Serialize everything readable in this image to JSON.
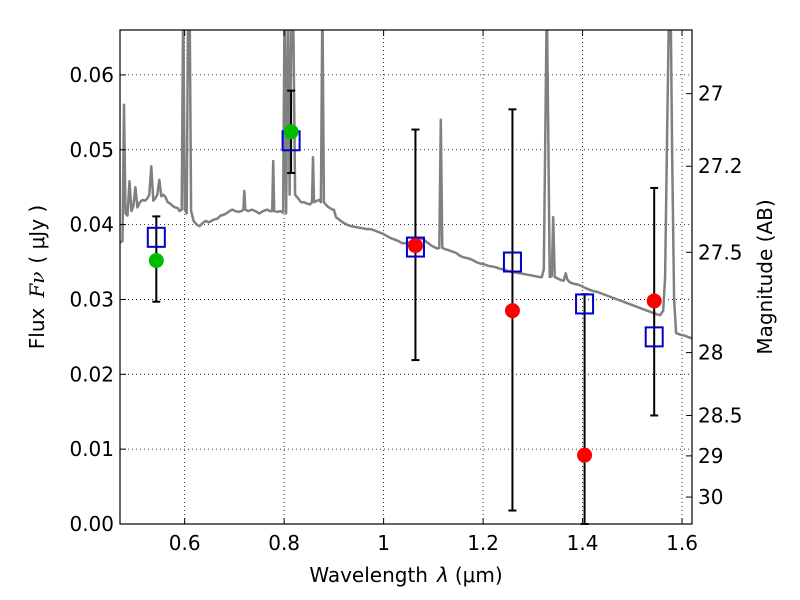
{
  "chart_data": {
    "type": "scatter",
    "xlabel_prefix": "Wavelength",
    "xlabel_symbol": "λ",
    "xlabel_unit": "(μm)",
    "ylabel_prefix": "Flux",
    "ylabel_symbol": "Fν",
    "ylabel_unit": "( μJy )",
    "y2label": "Magnitude (AB)",
    "xlim": [
      0.47,
      1.62
    ],
    "ylim": [
      0.0,
      0.066
    ],
    "xticks": [
      0.6,
      0.8,
      1.0,
      1.2,
      1.4,
      1.6
    ],
    "xtick_labels": [
      "0.6",
      "0.8",
      "1",
      "1.2",
      "1.4",
      "1.6"
    ],
    "yticks": [
      0.0,
      0.01,
      0.02,
      0.03,
      0.04,
      0.05,
      0.06
    ],
    "ytick_labels": [
      "0.00",
      "0.01",
      "0.02",
      "0.03",
      "0.04",
      "0.05",
      "0.06"
    ],
    "y2ticks": [
      {
        "label": "27",
        "flux": 0.0575
      },
      {
        "label": "27.2",
        "flux": 0.0478
      },
      {
        "label": "27.5",
        "flux": 0.0363
      },
      {
        "label": "28",
        "flux": 0.0229
      },
      {
        "label": "28.5",
        "flux": 0.0145
      },
      {
        "label": "29",
        "flux": 0.0091
      },
      {
        "label": "30",
        "flux": 0.0036
      }
    ],
    "grid": true,
    "colors": {
      "model": "#808080",
      "observed_green": "#00bb00",
      "observed_red": "#ff0000",
      "model_square": "#0000cc",
      "errorbar": "#000000"
    },
    "series": [
      {
        "kind": "model_spectrum",
        "points": [
          [
            0.47,
            0.0376
          ],
          [
            0.475,
            0.0378
          ],
          [
            0.478,
            0.056
          ],
          [
            0.481,
            0.0415
          ],
          [
            0.485,
            0.0412
          ],
          [
            0.489,
            0.0458
          ],
          [
            0.493,
            0.0418
          ],
          [
            0.497,
            0.0425
          ],
          [
            0.501,
            0.045
          ],
          [
            0.505,
            0.0423
          ],
          [
            0.51,
            0.043
          ],
          [
            0.515,
            0.0433
          ],
          [
            0.52,
            0.0432
          ],
          [
            0.525,
            0.0435
          ],
          [
            0.529,
            0.044
          ],
          [
            0.533,
            0.0478
          ],
          [
            0.537,
            0.0432
          ],
          [
            0.541,
            0.0435
          ],
          [
            0.545,
            0.044
          ],
          [
            0.549,
            0.046
          ],
          [
            0.553,
            0.0438
          ],
          [
            0.557,
            0.044
          ],
          [
            0.561,
            0.0437
          ],
          [
            0.566,
            0.043
          ],
          [
            0.571,
            0.0428
          ],
          [
            0.576,
            0.0425
          ],
          [
            0.581,
            0.0423
          ],
          [
            0.586,
            0.0422
          ],
          [
            0.59,
            0.0418
          ],
          [
            0.594,
            0.042
          ],
          [
            0.597,
            0.07
          ],
          [
            0.6,
            0.042
          ],
          [
            0.604,
            0.0415
          ],
          [
            0.607,
            0.07
          ],
          [
            0.61,
            0.07
          ],
          [
            0.613,
            0.0418
          ],
          [
            0.618,
            0.0405
          ],
          [
            0.624,
            0.04
          ],
          [
            0.63,
            0.0398
          ],
          [
            0.636,
            0.0402
          ],
          [
            0.642,
            0.0405
          ],
          [
            0.648,
            0.0403
          ],
          [
            0.654,
            0.0405
          ],
          [
            0.66,
            0.0407
          ],
          [
            0.666,
            0.0408
          ],
          [
            0.672,
            0.0412
          ],
          [
            0.678,
            0.0413
          ],
          [
            0.684,
            0.0415
          ],
          [
            0.69,
            0.0418
          ],
          [
            0.696,
            0.042
          ],
          [
            0.702,
            0.0418
          ],
          [
            0.708,
            0.0417
          ],
          [
            0.714,
            0.0418
          ],
          [
            0.718,
            0.042
          ],
          [
            0.72,
            0.0445
          ],
          [
            0.722,
            0.042
          ],
          [
            0.728,
            0.0418
          ],
          [
            0.735,
            0.042
          ],
          [
            0.742,
            0.0418
          ],
          [
            0.75,
            0.0415
          ],
          [
            0.758,
            0.0418
          ],
          [
            0.766,
            0.042
          ],
          [
            0.772,
            0.0418
          ],
          [
            0.776,
            0.0418
          ],
          [
            0.778,
            0.0485
          ],
          [
            0.78,
            0.0418
          ],
          [
            0.786,
            0.0417
          ],
          [
            0.792,
            0.0418
          ],
          [
            0.798,
            0.0416
          ],
          [
            0.801,
            0.07
          ],
          [
            0.804,
            0.0415
          ],
          [
            0.808,
            0.07
          ],
          [
            0.811,
            0.044
          ],
          [
            0.815,
            0.07
          ],
          [
            0.818,
            0.07
          ],
          [
            0.822,
            0.044
          ],
          [
            0.828,
            0.0435
          ],
          [
            0.834,
            0.043
          ],
          [
            0.84,
            0.043
          ],
          [
            0.846,
            0.0428
          ],
          [
            0.852,
            0.0427
          ],
          [
            0.856,
            0.043
          ],
          [
            0.858,
            0.049
          ],
          [
            0.86,
            0.043
          ],
          [
            0.866,
            0.0432
          ],
          [
            0.871,
            0.0433
          ],
          [
            0.874,
            0.043
          ],
          [
            0.877,
            0.07
          ],
          [
            0.88,
            0.043
          ],
          [
            0.886,
            0.0425
          ],
          [
            0.892,
            0.0422
          ],
          [
            0.897,
            0.042
          ],
          [
            0.9,
            0.042
          ],
          [
            0.904,
            0.041
          ],
          [
            0.91,
            0.0407
          ],
          [
            0.918,
            0.0403
          ],
          [
            0.926,
            0.04
          ],
          [
            0.934,
            0.0398
          ],
          [
            0.942,
            0.0397
          ],
          [
            0.95,
            0.0396
          ],
          [
            0.958,
            0.0395
          ],
          [
            0.966,
            0.0394
          ],
          [
            0.974,
            0.0394
          ],
          [
            0.982,
            0.0392
          ],
          [
            0.99,
            0.039
          ],
          [
            0.998,
            0.0388
          ],
          [
            1.006,
            0.0385
          ],
          [
            1.014,
            0.0382
          ],
          [
            1.022,
            0.038
          ],
          [
            1.03,
            0.0378
          ],
          [
            1.038,
            0.0375
          ],
          [
            1.046,
            0.0375
          ],
          [
            1.054,
            0.0377
          ],
          [
            1.06,
            0.0382
          ],
          [
            1.066,
            0.0379
          ],
          [
            1.072,
            0.038
          ],
          [
            1.078,
            0.0382
          ],
          [
            1.084,
            0.0378
          ],
          [
            1.09,
            0.0375
          ],
          [
            1.096,
            0.0372
          ],
          [
            1.102,
            0.037
          ],
          [
            1.108,
            0.0368
          ],
          [
            1.112,
            0.0369
          ],
          [
            1.115,
            0.054
          ],
          [
            1.118,
            0.0369
          ],
          [
            1.124,
            0.0367
          ],
          [
            1.13,
            0.0366
          ],
          [
            1.138,
            0.0364
          ],
          [
            1.146,
            0.0362
          ],
          [
            1.154,
            0.0358
          ],
          [
            1.162,
            0.0356
          ],
          [
            1.17,
            0.0355
          ],
          [
            1.178,
            0.0353
          ],
          [
            1.186,
            0.035
          ],
          [
            1.194,
            0.0348
          ],
          [
            1.202,
            0.0347
          ],
          [
            1.21,
            0.0345
          ],
          [
            1.218,
            0.0344
          ],
          [
            1.226,
            0.0343
          ],
          [
            1.234,
            0.0341
          ],
          [
            1.242,
            0.034
          ],
          [
            1.25,
            0.0338
          ],
          [
            1.258,
            0.0337
          ],
          [
            1.266,
            0.0336
          ],
          [
            1.274,
            0.0335
          ],
          [
            1.282,
            0.0334
          ],
          [
            1.29,
            0.0333
          ],
          [
            1.298,
            0.0332
          ],
          [
            1.306,
            0.0331
          ],
          [
            1.312,
            0.033
          ],
          [
            1.318,
            0.033
          ],
          [
            1.322,
            0.034
          ],
          [
            1.325,
            0.052
          ],
          [
            1.328,
            0.07
          ],
          [
            1.331,
            0.052
          ],
          [
            1.334,
            0.033
          ],
          [
            1.338,
            0.0331
          ],
          [
            1.341,
            0.041
          ],
          [
            1.344,
            0.033
          ],
          [
            1.35,
            0.0328
          ],
          [
            1.356,
            0.0326
          ],
          [
            1.362,
            0.0325
          ],
          [
            1.366,
            0.0335
          ],
          [
            1.369,
            0.0327
          ],
          [
            1.374,
            0.0323
          ],
          [
            1.382,
            0.0321
          ],
          [
            1.39,
            0.032
          ],
          [
            1.398,
            0.0318
          ],
          [
            1.406,
            0.0315
          ],
          [
            1.414,
            0.0313
          ],
          [
            1.422,
            0.0311
          ],
          [
            1.43,
            0.031
          ],
          [
            1.438,
            0.0308
          ],
          [
            1.446,
            0.0306
          ],
          [
            1.454,
            0.0304
          ],
          [
            1.462,
            0.0302
          ],
          [
            1.47,
            0.03
          ],
          [
            1.478,
            0.0298
          ],
          [
            1.486,
            0.0296
          ],
          [
            1.494,
            0.0294
          ],
          [
            1.502,
            0.0292
          ],
          [
            1.51,
            0.029
          ],
          [
            1.518,
            0.0288
          ],
          [
            1.526,
            0.0286
          ],
          [
            1.534,
            0.0284
          ],
          [
            1.542,
            0.0282
          ],
          [
            1.55,
            0.028
          ],
          [
            1.556,
            0.0279
          ],
          [
            1.562,
            0.0285
          ],
          [
            1.566,
            0.033
          ],
          [
            1.57,
            0.052
          ],
          [
            1.574,
            0.07
          ],
          [
            1.577,
            0.07
          ],
          [
            1.58,
            0.05
          ],
          [
            1.584,
            0.03
          ],
          [
            1.588,
            0.0255
          ],
          [
            1.596,
            0.0253
          ],
          [
            1.604,
            0.0252
          ],
          [
            1.612,
            0.025
          ],
          [
            1.62,
            0.0248
          ]
        ]
      },
      {
        "kind": "observed_green",
        "points": [
          {
            "x": 0.543,
            "y": 0.0352
          },
          {
            "x": 0.814,
            "y": 0.0524
          }
        ]
      },
      {
        "kind": "observed_red",
        "points": [
          {
            "x": 1.064,
            "y": 0.0372
          },
          {
            "x": 1.259,
            "y": 0.0285
          },
          {
            "x": 1.404,
            "y": 0.0092
          },
          {
            "x": 1.544,
            "y": 0.0298
          }
        ]
      },
      {
        "kind": "model_squares",
        "points": [
          {
            "x": 0.543,
            "y": 0.0383
          },
          {
            "x": 0.814,
            "y": 0.0512
          },
          {
            "x": 1.064,
            "y": 0.037
          },
          {
            "x": 1.259,
            "y": 0.035
          },
          {
            "x": 1.404,
            "y": 0.0294
          },
          {
            "x": 1.544,
            "y": 0.025
          }
        ]
      },
      {
        "kind": "errorbars",
        "points": [
          {
            "x": 0.543,
            "lo": 0.0297,
            "hi": 0.0411
          },
          {
            "x": 0.814,
            "lo": 0.0469,
            "hi": 0.0579
          },
          {
            "x": 1.064,
            "lo": 0.0219,
            "hi": 0.0527
          },
          {
            "x": 1.259,
            "lo": 0.0018,
            "hi": 0.0554
          },
          {
            "x": 1.404,
            "lo": 0.0,
            "hi": 0.0307
          },
          {
            "x": 1.544,
            "lo": 0.0145,
            "hi": 0.0449
          }
        ]
      }
    ]
  }
}
